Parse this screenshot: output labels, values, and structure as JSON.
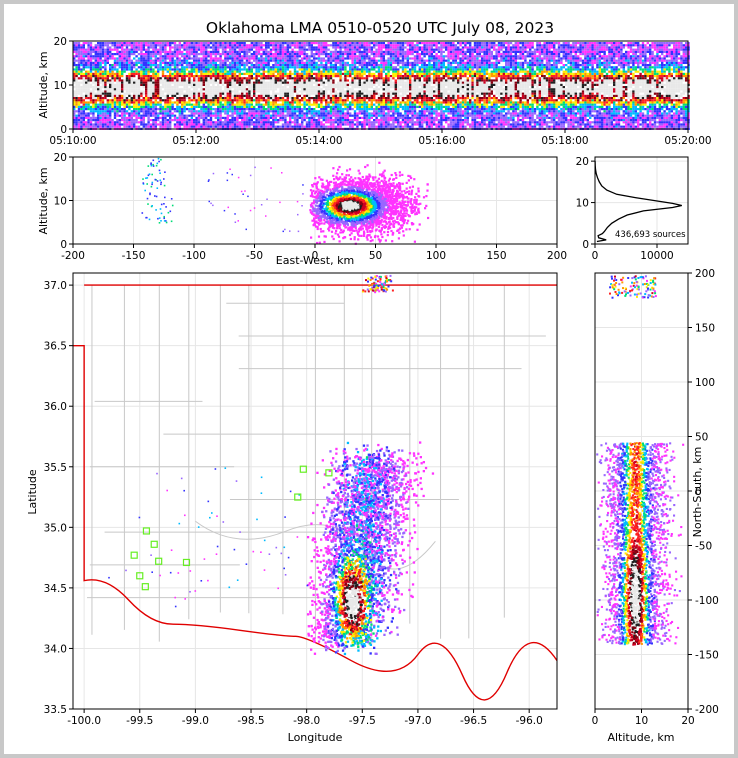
{
  "chart_data": {
    "title": "Oklahoma LMA 0510-0520 UTC July 08, 2023",
    "panels": [
      {
        "id": "time_altitude",
        "type": "heatmap",
        "ylabel": "Altitude, km",
        "ylim": [
          0,
          20
        ],
        "yticks": [
          0,
          10,
          20
        ],
        "xticks": [
          "05:10:00",
          "05:12:00",
          "05:14:00",
          "05:16:00",
          "05:18:00",
          "05:20:00"
        ]
      },
      {
        "id": "ew_altitude",
        "type": "heatmap",
        "xlabel": "East-West, km",
        "ylabel": "Altitude, km",
        "xlim": [
          -200,
          200
        ],
        "ylim": [
          0,
          20
        ],
        "xticks": [
          -200,
          -150,
          -100,
          -50,
          0,
          50,
          100,
          150,
          200
        ],
        "yticks": [
          0,
          10,
          20
        ]
      },
      {
        "id": "altitude_histogram",
        "type": "line",
        "annotation": "436,693 sources",
        "xlim": [
          0,
          15000
        ],
        "ylim": [
          0,
          21
        ],
        "xticks": [
          0,
          10000
        ],
        "yticks": [
          0,
          10,
          20
        ],
        "points": [
          [
            300,
            0.6
          ],
          [
            1800,
            1
          ],
          [
            600,
            1.5
          ],
          [
            500,
            2
          ],
          [
            1200,
            2.5
          ],
          [
            1500,
            3
          ],
          [
            2000,
            4
          ],
          [
            2700,
            5
          ],
          [
            3800,
            6
          ],
          [
            5200,
            7
          ],
          [
            7800,
            8
          ],
          [
            12500,
            8.8
          ],
          [
            14000,
            9.3
          ],
          [
            12500,
            9.8
          ],
          [
            9500,
            10.5
          ],
          [
            6500,
            11.2
          ],
          [
            3500,
            12
          ],
          [
            1900,
            13
          ],
          [
            1100,
            14
          ],
          [
            700,
            15
          ],
          [
            400,
            16
          ],
          [
            200,
            17
          ],
          [
            80,
            18
          ],
          [
            30,
            19
          ],
          [
            10,
            20
          ]
        ]
      },
      {
        "id": "plan_view",
        "type": "heatmap",
        "xlabel": "Longitude",
        "ylabel": "Latitude",
        "xlim": [
          -100.1,
          -95.75
        ],
        "ylim": [
          33.5,
          37.1
        ],
        "xticks": [
          "-100.0",
          "-99.5",
          "-99.0",
          "-98.5",
          "-98.0",
          "-97.5",
          "-97.0",
          "-96.5",
          "-96.0"
        ],
        "yticks": [
          "33.5",
          "34.0",
          "34.5",
          "35.0",
          "35.5",
          "36.0",
          "36.5",
          "37.0"
        ],
        "stations": [
          [
            -98.03,
            35.48
          ],
          [
            -97.8,
            35.45
          ],
          [
            -98.08,
            35.25
          ],
          [
            -99.44,
            34.97
          ],
          [
            -99.37,
            34.86
          ],
          [
            -99.55,
            34.77
          ],
          [
            -99.33,
            34.72
          ],
          [
            -99.08,
            34.71
          ],
          [
            -99.5,
            34.6
          ],
          [
            -99.45,
            34.51
          ]
        ]
      },
      {
        "id": "altitude_ns",
        "type": "heatmap",
        "xlabel": "Altitude, km",
        "ylabel": "North-South, km",
        "xlim": [
          0,
          20
        ],
        "ylim": [
          -200,
          200
        ],
        "xticks": [
          0,
          10,
          20
        ],
        "yticks": [
          -200,
          -150,
          -100,
          -50,
          0,
          50,
          100,
          150,
          200
        ]
      }
    ]
  },
  "colors": {
    "background": "#ffffff",
    "state_border": "#e00000",
    "county_lines": "#c8c8c8",
    "station_marker": "#66ee22",
    "density_scale": [
      "#ff33ff",
      "#9966ff",
      "#3333ff",
      "#00bbff",
      "#00dd77",
      "#ffee00",
      "#ff9900",
      "#ff2222",
      "#cc0022",
      "#880011",
      "#202020",
      "#e8e8e8"
    ]
  }
}
